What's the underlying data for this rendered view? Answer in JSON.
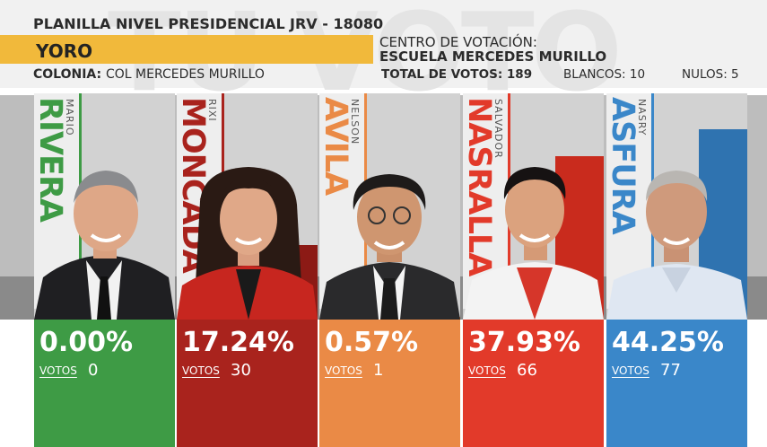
{
  "header": {
    "title": "PLANILLA NIVEL PRESIDENCIAL",
    "jrv": "JRV - 18080",
    "department": "YORO",
    "center_label": "CENTRO DE VOTACIÓN:",
    "center_name": "ESCUELA MERCEDES MURILLO",
    "colonia_label": "COLONIA:",
    "colonia_value": "COL MERCEDES MURILLO",
    "total_votes_text": "TOTAL DE VOTOS: 189",
    "blancos_text": "BLANCOS: 10",
    "nulos_text": "NULOS: 5",
    "watermark": "TU VOTO"
  },
  "colors": {
    "header_bg": "#f1f1f1",
    "department_bar": "#f1b93b"
  },
  "candidates": [
    {
      "first_name": "MARIO",
      "last_name": "RIVERA",
      "percent": "0.00%",
      "percent_value": 0.0,
      "votes_label": "VOTOS",
      "votes": "0",
      "color": "#3e9b45",
      "dark": "#2f7e36"
    },
    {
      "first_name": "RIXI",
      "last_name": "MONCADA",
      "percent": "17.24%",
      "percent_value": 17.24,
      "votes_label": "VOTOS",
      "votes": "30",
      "color": "#a9231d",
      "dark": "#8c1a15"
    },
    {
      "first_name": "NELSON",
      "last_name": "AVILA",
      "percent": "0.57%",
      "percent_value": 0.57,
      "votes_label": "VOTOS",
      "votes": "1",
      "color": "#ea8a46",
      "dark": "#d9742f"
    },
    {
      "first_name": "SALVADOR",
      "last_name": "NASRALLA",
      "percent": "37.93%",
      "percent_value": 37.93,
      "votes_label": "VOTOS",
      "votes": "66",
      "color": "#e23a2a",
      "dark": "#c92b1d"
    },
    {
      "first_name": "NASRY",
      "last_name": "ASFURA",
      "percent": "44.25%",
      "percent_value": 44.25,
      "votes_label": "VOTOS",
      "votes": "77",
      "color": "#3a87c9",
      "dark": "#2f73b0"
    }
  ]
}
